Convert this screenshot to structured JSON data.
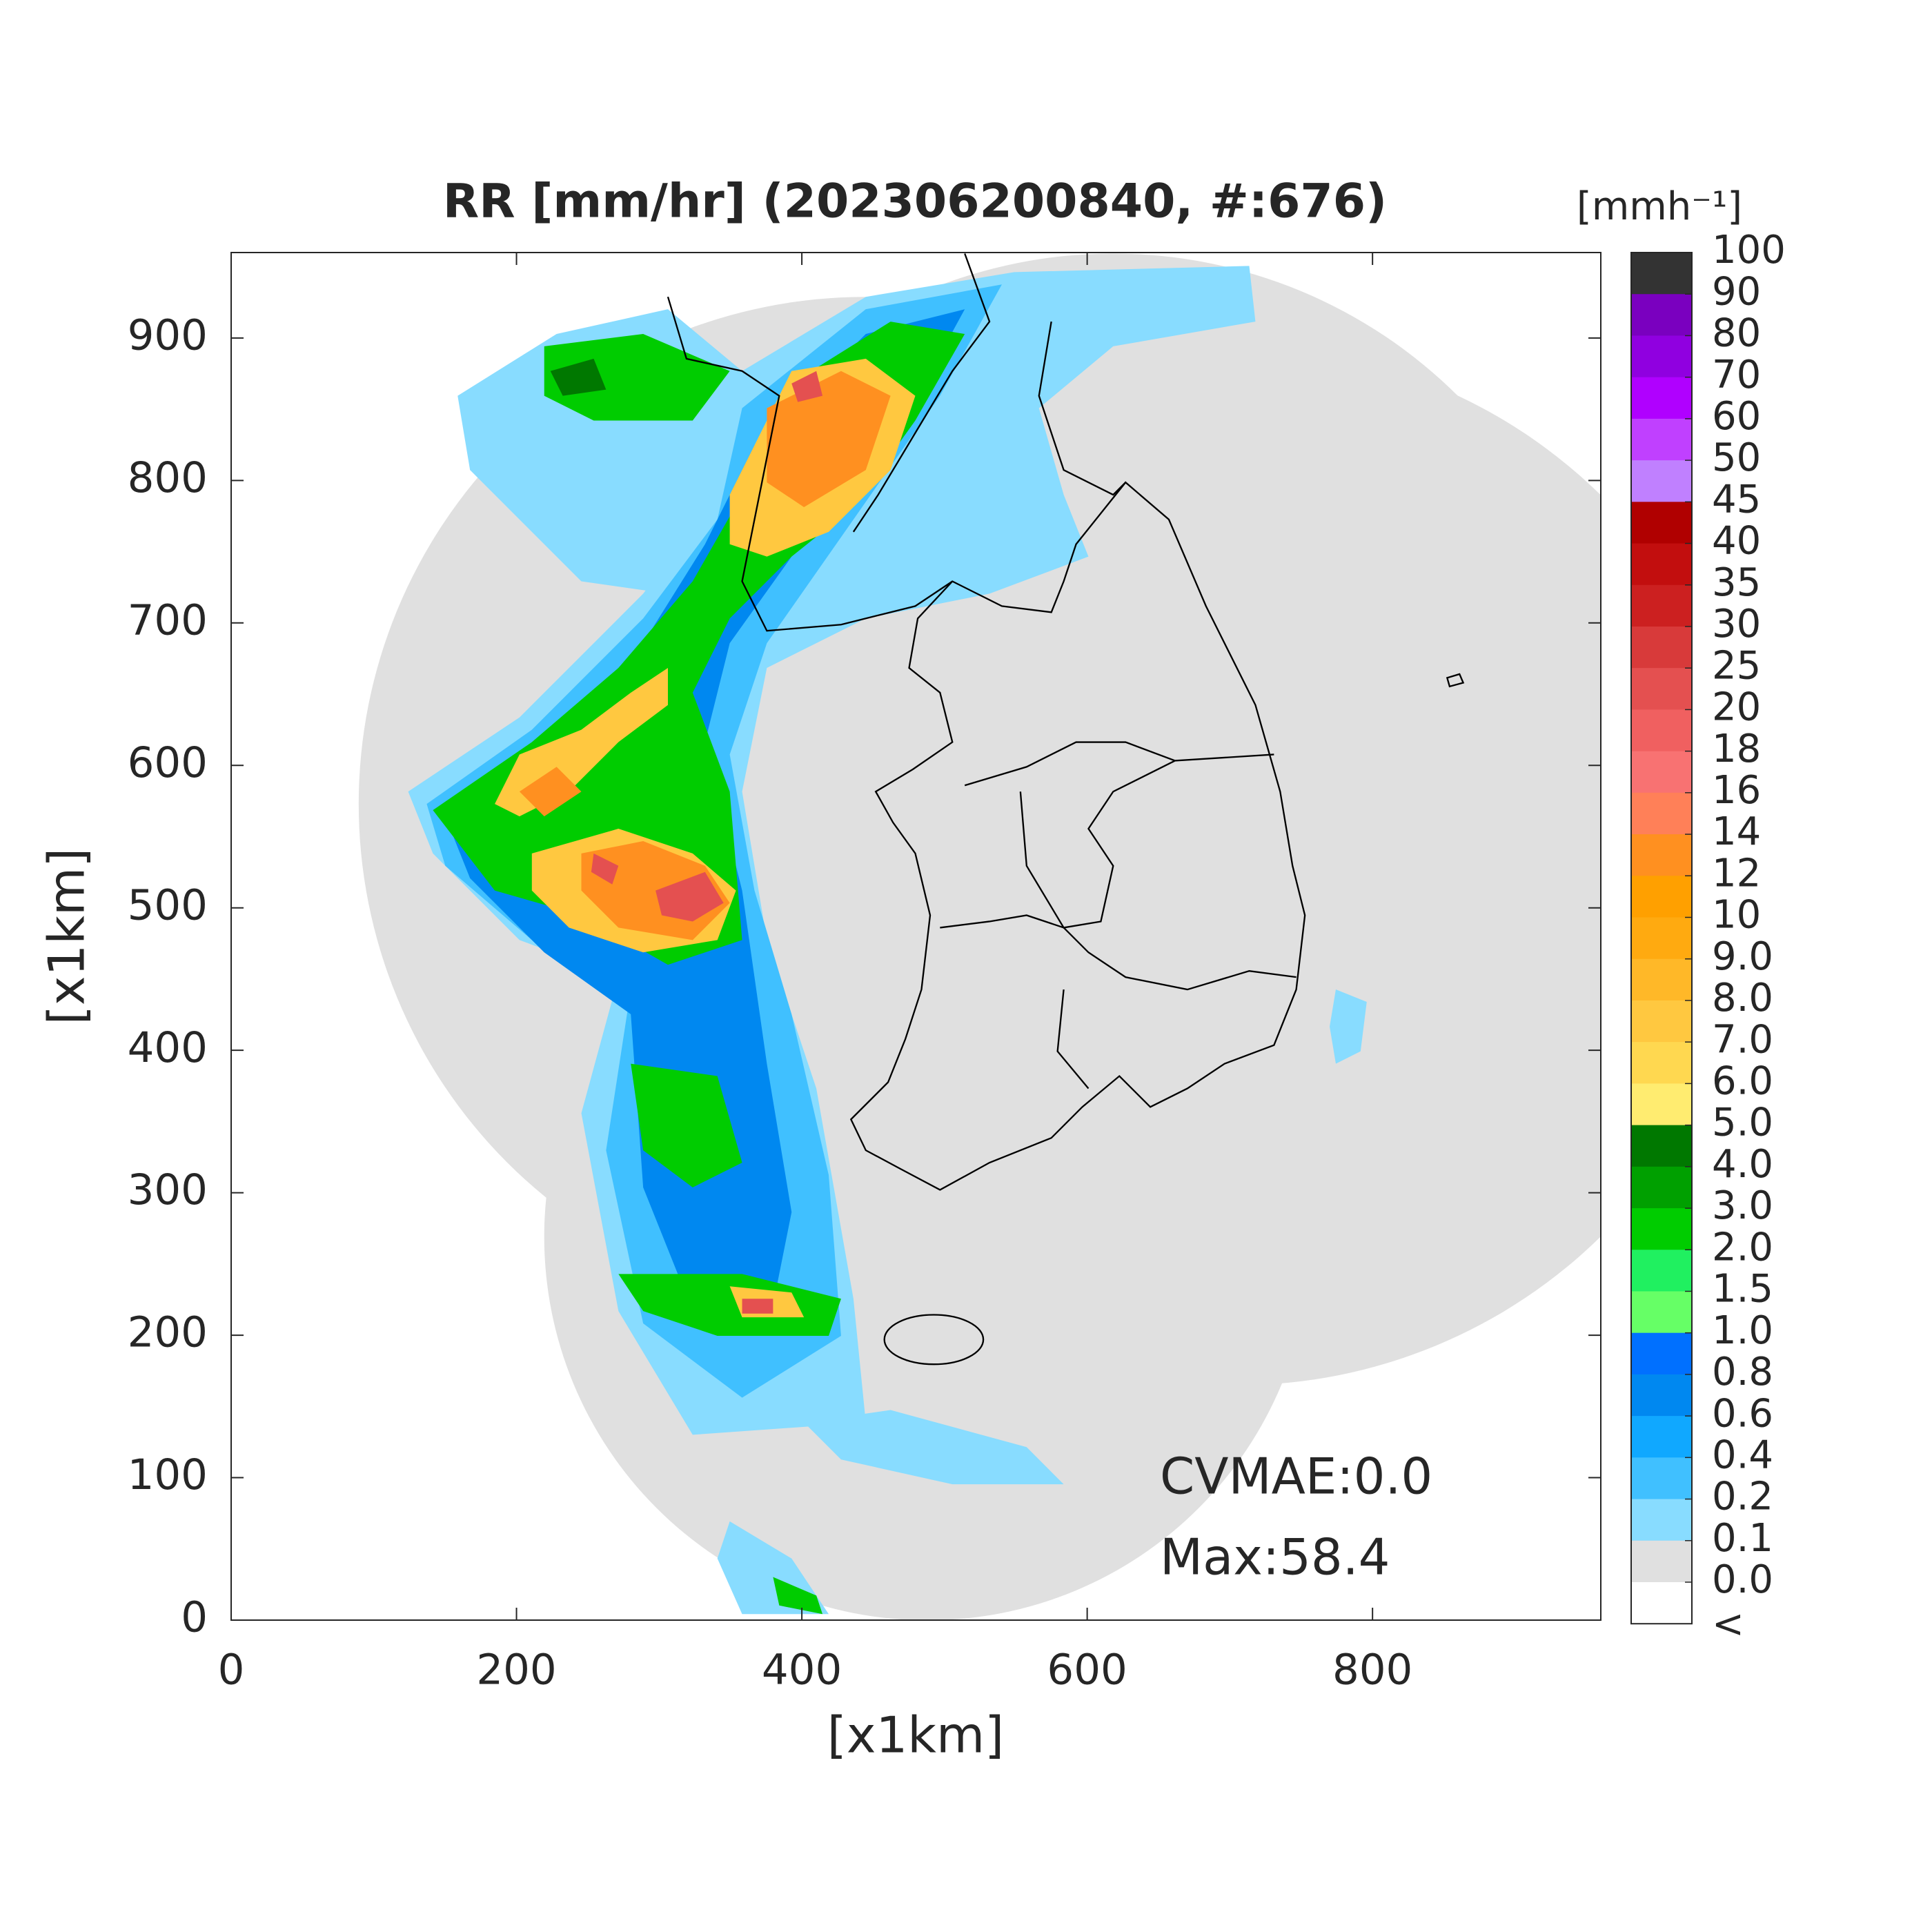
{
  "chart_data": {
    "type": "map",
    "title": "RR [mm/hr] (202306200840, #:676)",
    "xlabel": "[x1km]",
    "ylabel": "[x1km]",
    "xlim": [
      0,
      960
    ],
    "ylim": [
      0,
      960
    ],
    "xticks": [
      0,
      200,
      400,
      600,
      800
    ],
    "yticks": [
      0,
      100,
      200,
      300,
      400,
      500,
      600,
      700,
      800,
      900
    ],
    "annotations": [
      "CVMAE:0.0",
      "Max:58.4"
    ],
    "colorbar": {
      "label": "[mmh⁻¹]",
      "ticks": [
        100,
        90,
        80,
        70,
        60,
        50,
        45,
        40,
        35,
        30,
        25,
        20,
        18,
        16,
        14,
        12,
        10,
        {
          "value": 9,
          "label": "9.0"
        },
        {
          "value": 8,
          "label": "8.0"
        },
        {
          "value": 7,
          "label": "7.0"
        },
        {
          "value": 6,
          "label": "6.0"
        },
        {
          "value": 5,
          "label": "5.0"
        },
        {
          "value": 4,
          "label": "4.0"
        },
        {
          "value": 3,
          "label": "3.0"
        },
        {
          "value": 2,
          "label": "2.0"
        },
        1.5,
        {
          "value": 1,
          "label": "1.0"
        },
        0.8,
        0.6,
        0.4,
        0.2,
        0.1,
        {
          "value": 0,
          "label": "0.0"
        }
      ],
      "colors": [
        "#333333",
        "#7a00bf",
        "#9000e0",
        "#b000ff",
        "#c040ff",
        "#c080ff",
        "#b00000",
        "#c20e0e",
        "#cc2020",
        "#d83a3a",
        "#e45050",
        "#f06060",
        "#f87272",
        "#ff8058",
        "#ff9020",
        "#ffa000",
        "#ffaa10",
        "#ffb828",
        "#ffc840",
        "#ffd850",
        "#ffec70",
        "#007800",
        "#00a000",
        "#00cc00",
        "#20f060",
        "#66ff66",
        "#0070ff",
        "#0088f0",
        "#10a8ff",
        "#40c0ff",
        "#88dcff",
        "#e0e0e0"
      ],
      "under_label": "<",
      "under_color": "#ffffff"
    }
  }
}
